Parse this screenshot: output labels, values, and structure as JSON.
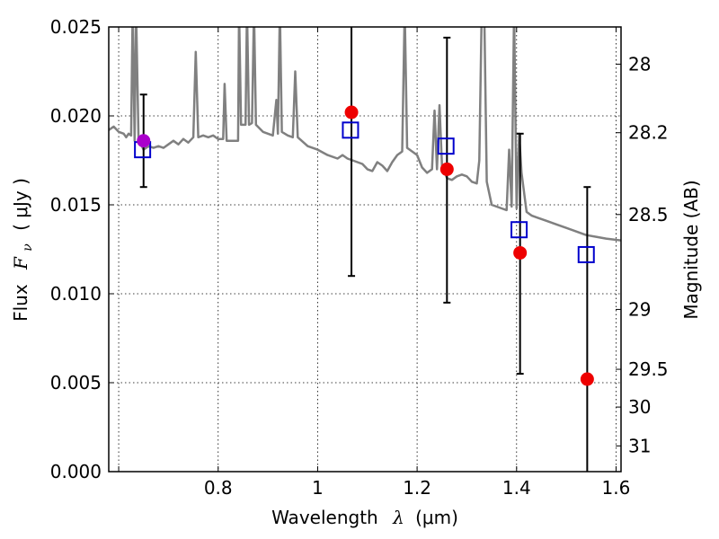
{
  "chart_data": {
    "type": "scatter",
    "xlabel": "Wavelength",
    "xlabel_symbol": "λ",
    "xlabel_unit": "(μm)",
    "ylabel": "Flux",
    "ylabel_symbol": "F",
    "ylabel_sub": "ν",
    "ylabel_unit": "( μJy )",
    "y2label": "Magnitude (AB)",
    "xlim": [
      0.58,
      1.61
    ],
    "ylim": [
      0.0,
      0.025
    ],
    "grid": true,
    "xticks": [
      {
        "value": 0.6,
        "label": ""
      },
      {
        "value": 0.8,
        "label": "0.8"
      },
      {
        "value": 1.0,
        "label": "1"
      },
      {
        "value": 1.2,
        "label": "1.2"
      },
      {
        "value": 1.4,
        "label": "1.4"
      },
      {
        "value": 1.6,
        "label": "1.6"
      }
    ],
    "yticks": [
      {
        "value": 0.0,
        "label": "0.000"
      },
      {
        "value": 0.005,
        "label": "0.005"
      },
      {
        "value": 0.01,
        "label": "0.010"
      },
      {
        "value": 0.015,
        "label": "0.015"
      },
      {
        "value": 0.02,
        "label": "0.020"
      },
      {
        "value": 0.025,
        "label": "0.025"
      }
    ],
    "y2ticks": [
      {
        "mag": 28,
        "label": "28"
      },
      {
        "mag": 28.2,
        "label": "28.2"
      },
      {
        "mag": 28.5,
        "label": "28.5"
      },
      {
        "mag": 29,
        "label": "29"
      },
      {
        "mag": 29.5,
        "label": "29.5"
      },
      {
        "mag": 30,
        "label": "30"
      },
      {
        "mag": 31,
        "label": "31"
      }
    ],
    "model_color": "#808080",
    "model_spectrum": [
      [
        0.58,
        0.0192
      ],
      [
        0.59,
        0.0194
      ],
      [
        0.6,
        0.0191
      ],
      [
        0.61,
        0.019
      ],
      [
        0.615,
        0.0188
      ],
      [
        0.62,
        0.019
      ],
      [
        0.625,
        0.0189
      ],
      [
        0.628,
        0.026
      ],
      [
        0.632,
        0.0186
      ],
      [
        0.635,
        0.026
      ],
      [
        0.64,
        0.0185
      ],
      [
        0.645,
        0.0184
      ],
      [
        0.65,
        0.0181
      ],
      [
        0.66,
        0.0183
      ],
      [
        0.67,
        0.0182
      ],
      [
        0.68,
        0.0183
      ],
      [
        0.69,
        0.0182
      ],
      [
        0.7,
        0.0184
      ],
      [
        0.71,
        0.0186
      ],
      [
        0.72,
        0.0184
      ],
      [
        0.73,
        0.0187
      ],
      [
        0.74,
        0.0185
      ],
      [
        0.75,
        0.0188
      ],
      [
        0.755,
        0.0236
      ],
      [
        0.76,
        0.0188
      ],
      [
        0.77,
        0.0189
      ],
      [
        0.78,
        0.0188
      ],
      [
        0.79,
        0.0189
      ],
      [
        0.8,
        0.0187
      ],
      [
        0.81,
        0.0187
      ],
      [
        0.813,
        0.0218
      ],
      [
        0.817,
        0.0186
      ],
      [
        0.83,
        0.0186
      ],
      [
        0.84,
        0.0186
      ],
      [
        0.842,
        0.026
      ],
      [
        0.846,
        0.0195
      ],
      [
        0.855,
        0.0195
      ],
      [
        0.858,
        0.026
      ],
      [
        0.862,
        0.0195
      ],
      [
        0.868,
        0.0196
      ],
      [
        0.872,
        0.026
      ],
      [
        0.876,
        0.0195
      ],
      [
        0.89,
        0.0191
      ],
      [
        0.91,
        0.0189
      ],
      [
        0.917,
        0.0209
      ],
      [
        0.92,
        0.019
      ],
      [
        0.924,
        0.026
      ],
      [
        0.928,
        0.0191
      ],
      [
        0.94,
        0.0189
      ],
      [
        0.95,
        0.0188
      ],
      [
        0.955,
        0.0225
      ],
      [
        0.96,
        0.0188
      ],
      [
        0.98,
        0.0183
      ],
      [
        1.0,
        0.0181
      ],
      [
        1.02,
        0.0178
      ],
      [
        1.04,
        0.0176
      ],
      [
        1.05,
        0.0178
      ],
      [
        1.06,
        0.0176
      ],
      [
        1.07,
        0.0175
      ],
      [
        1.08,
        0.0174
      ],
      [
        1.09,
        0.0173
      ],
      [
        1.1,
        0.017
      ],
      [
        1.11,
        0.0169
      ],
      [
        1.12,
        0.0174
      ],
      [
        1.13,
        0.0172
      ],
      [
        1.14,
        0.0169
      ],
      [
        1.15,
        0.0174
      ],
      [
        1.16,
        0.0178
      ],
      [
        1.17,
        0.018
      ],
      [
        1.175,
        0.026
      ],
      [
        1.18,
        0.0182
      ],
      [
        1.19,
        0.018
      ],
      [
        1.2,
        0.0178
      ],
      [
        1.21,
        0.0171
      ],
      [
        1.22,
        0.0168
      ],
      [
        1.23,
        0.017
      ],
      [
        1.235,
        0.0203
      ],
      [
        1.24,
        0.017
      ],
      [
        1.245,
        0.0206
      ],
      [
        1.25,
        0.0172
      ],
      [
        1.26,
        0.0165
      ],
      [
        1.27,
        0.0164
      ],
      [
        1.28,
        0.0166
      ],
      [
        1.29,
        0.0167
      ],
      [
        1.3,
        0.0166
      ],
      [
        1.31,
        0.0163
      ],
      [
        1.32,
        0.0162
      ],
      [
        1.325,
        0.0175
      ],
      [
        1.33,
        0.026
      ],
      [
        1.335,
        0.026
      ],
      [
        1.34,
        0.0163
      ],
      [
        1.35,
        0.015
      ],
      [
        1.36,
        0.0149
      ],
      [
        1.37,
        0.0148
      ],
      [
        1.38,
        0.0147
      ],
      [
        1.385,
        0.0181
      ],
      [
        1.39,
        0.0149
      ],
      [
        1.395,
        0.026
      ],
      [
        1.4,
        0.0148
      ],
      [
        1.405,
        0.019
      ],
      [
        1.41,
        0.0168
      ],
      [
        1.42,
        0.0146
      ],
      [
        1.43,
        0.0144
      ],
      [
        1.44,
        0.0143
      ],
      [
        1.46,
        0.0141
      ],
      [
        1.48,
        0.0139
      ],
      [
        1.5,
        0.0137
      ],
      [
        1.52,
        0.0135
      ],
      [
        1.54,
        0.0133
      ],
      [
        1.56,
        0.0132
      ],
      [
        1.58,
        0.0131
      ],
      [
        1.61,
        0.013
      ]
    ],
    "series": [
      {
        "marker": "square",
        "color": "#0000cc",
        "points": [
          {
            "x": 0.648,
            "y": 0.0181
          },
          {
            "x": 1.066,
            "y": 0.0192
          },
          {
            "x": 1.258,
            "y": 0.0183
          },
          {
            "x": 1.405,
            "y": 0.0136
          },
          {
            "x": 1.54,
            "y": 0.0122
          }
        ]
      },
      {
        "marker": "circle",
        "color": "#ee0000",
        "points": [
          {
            "x": 0.65,
            "y": 0.0186,
            "err": 0.0026,
            "color": "#aa00cc"
          },
          {
            "x": 1.068,
            "y": 0.0202,
            "yerr_low": 0.011,
            "yerr_high": 0.025
          },
          {
            "x": 1.26,
            "y": 0.017,
            "yerr_low": 0.0095,
            "yerr_high": 0.0244
          },
          {
            "x": 1.407,
            "y": 0.0123,
            "yerr_low": 0.0055,
            "yerr_high": 0.019
          },
          {
            "x": 1.542,
            "y": 0.0052,
            "yerr_low": 0.0,
            "yerr_high": 0.016
          }
        ]
      }
    ]
  }
}
